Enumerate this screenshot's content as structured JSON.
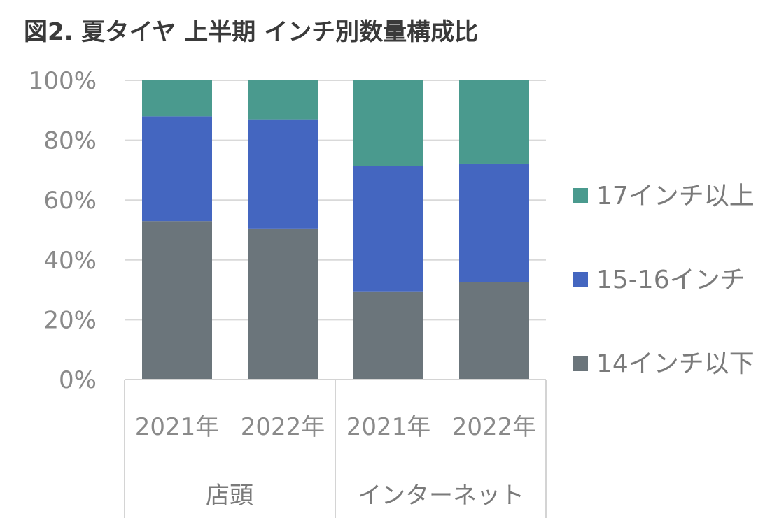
{
  "title": "図2. 夏タイヤ 上半期 インチ別数量構成比",
  "chart_data": {
    "type": "bar",
    "stacked": true,
    "percent": true,
    "title": "図2. 夏タイヤ 上半期 インチ別数量構成比",
    "categories": [
      "2021年",
      "2022年",
      "2021年",
      "2022年"
    ],
    "groups": [
      {
        "label": "店頭",
        "categories": [
          "2021年",
          "2022年"
        ]
      },
      {
        "label": "インターネット",
        "categories": [
          "2021年",
          "2022年"
        ]
      }
    ],
    "series": [
      {
        "name": "14インチ以下",
        "color": "#6b757b",
        "values": [
          53,
          50.5,
          29.5,
          32.5
        ]
      },
      {
        "name": "15-16インチ",
        "color": "#4466c0",
        "values": [
          35,
          36.5,
          41.8,
          39.7
        ]
      },
      {
        "name": "17インチ以上",
        "color": "#4a9a8e",
        "values": [
          12,
          13,
          28.7,
          27.8
        ]
      }
    ],
    "ylim": [
      0,
      100
    ],
    "yticks": [
      "0%",
      "20%",
      "40%",
      "60%",
      "80%",
      "100%"
    ],
    "grid": true,
    "legend_position": "right"
  }
}
